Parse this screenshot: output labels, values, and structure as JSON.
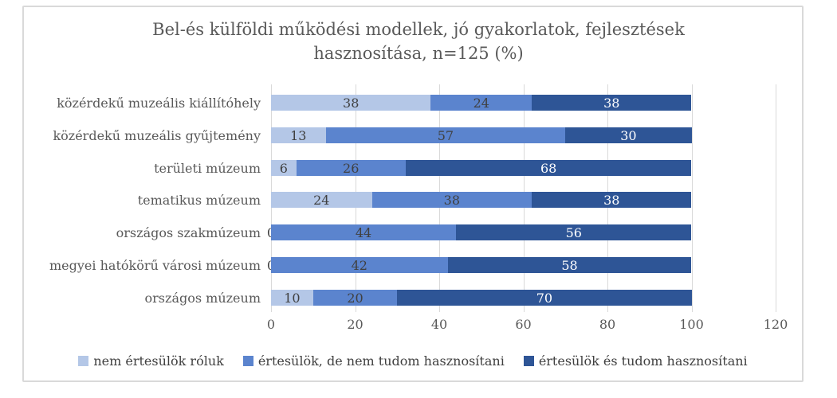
{
  "title": {
    "line1": "Bel-és külföldi működési modellek, jó gyakorlatok, fejlesztések",
    "line2": "hasznosítása, n=125 (%)"
  },
  "colors": {
    "light_blue": "#b4c7e7",
    "medium_blue": "#5b84ce",
    "dark_blue": "#2e5596",
    "grid": "#d9d9d9",
    "axis_text": "#595959",
    "label_on_light": "#404040",
    "label_on_dark": "#ffffff"
  },
  "chart_data": {
    "type": "bar",
    "orientation": "horizontal",
    "stacked": true,
    "title": "Bel-és külföldi működési modellek, jó gyakorlatok, fejlesztések hasznosítása, n=125 (%)",
    "sample_note": "n=125 (%)",
    "categories": [
      "közérdekű muzeális kiállítóhely",
      "közérdekű muzeális gyűjtemény",
      "területi múzeum",
      "tematikus múzeum",
      "országos szakmúzeum",
      "megyei hatókörű városi múzeum",
      "országos múzeum"
    ],
    "series": [
      {
        "name": "nem értesülök róluk",
        "color": "#b4c7e7",
        "values": [
          38,
          13,
          6,
          24,
          0,
          0,
          10
        ]
      },
      {
        "name": "értesülök, de nem tudom hasznosítani",
        "color": "#5b84ce",
        "values": [
          24,
          57,
          26,
          38,
          44,
          42,
          20
        ]
      },
      {
        "name": "értesülök és tudom hasznosítani",
        "color": "#2e5596",
        "values": [
          38,
          30,
          68,
          38,
          56,
          58,
          70
        ]
      }
    ],
    "x_ticks": [
      0,
      20,
      40,
      60,
      80,
      100,
      120
    ],
    "xlim": [
      0,
      120
    ],
    "grid": "vertical",
    "legend_position": "bottom"
  }
}
